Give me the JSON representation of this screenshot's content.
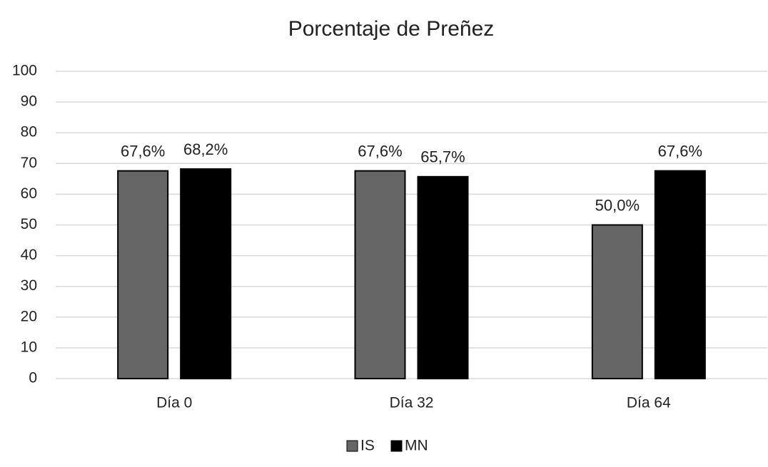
{
  "chart_data": {
    "type": "bar",
    "title": "Porcentaje de Preñez",
    "categories": [
      "Día 0",
      "Día 32",
      "Día 64"
    ],
    "series": [
      {
        "name": "IS",
        "color": "#666666",
        "values": [
          67.6,
          67.6,
          50.0
        ],
        "value_labels": [
          "67,6%",
          "67,6%",
          "50,0%"
        ]
      },
      {
        "name": "MN",
        "color": "#000000",
        "values": [
          68.2,
          65.7,
          67.6
        ],
        "value_labels": [
          "68,2%",
          "65,7%",
          "67,6%"
        ]
      }
    ],
    "ylim": [
      0,
      100
    ],
    "yticks": [
      0,
      10,
      20,
      30,
      40,
      50,
      60,
      70,
      80,
      90,
      100
    ],
    "grid": true,
    "legend": "bottom"
  }
}
